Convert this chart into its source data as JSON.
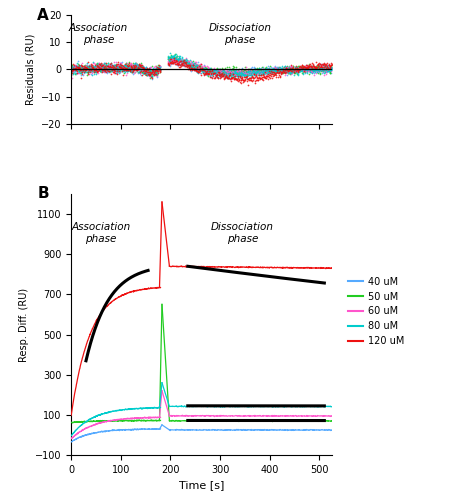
{
  "panel_A_label": "A",
  "panel_B_label": "B",
  "xlim": [
    0,
    525
  ],
  "xticks": [
    0,
    100,
    200,
    300,
    400,
    500
  ],
  "xlabel": "Time [s]",
  "ylim_A": [
    -20,
    20
  ],
  "yticks_A": [
    -20,
    -10,
    0,
    10,
    20
  ],
  "ylabel_A": "Residuals (RU)",
  "ylim_B": [
    -100,
    1200
  ],
  "yticks_B": [
    -100,
    100,
    300,
    500,
    700,
    900,
    1100
  ],
  "ylabel_B": "Resp. Diff. (RU)",
  "colors": {
    "40uM": "#55aaff",
    "50uM": "#22cc22",
    "60uM": "#ff55cc",
    "80uM": "#00cccc",
    "120uM": "#ee1111"
  },
  "legend_labels": [
    "40 uM",
    "50 uM",
    "60 uM",
    "80 uM",
    "120 uM"
  ],
  "legend_colors": [
    "#55aaff",
    "#22cc22",
    "#ff55cc",
    "#00cccc",
    "#ee1111"
  ],
  "assoc_text": "Association\nphase",
  "dissoc_text": "Dissociation\nphase",
  "background_color": "#ffffff"
}
